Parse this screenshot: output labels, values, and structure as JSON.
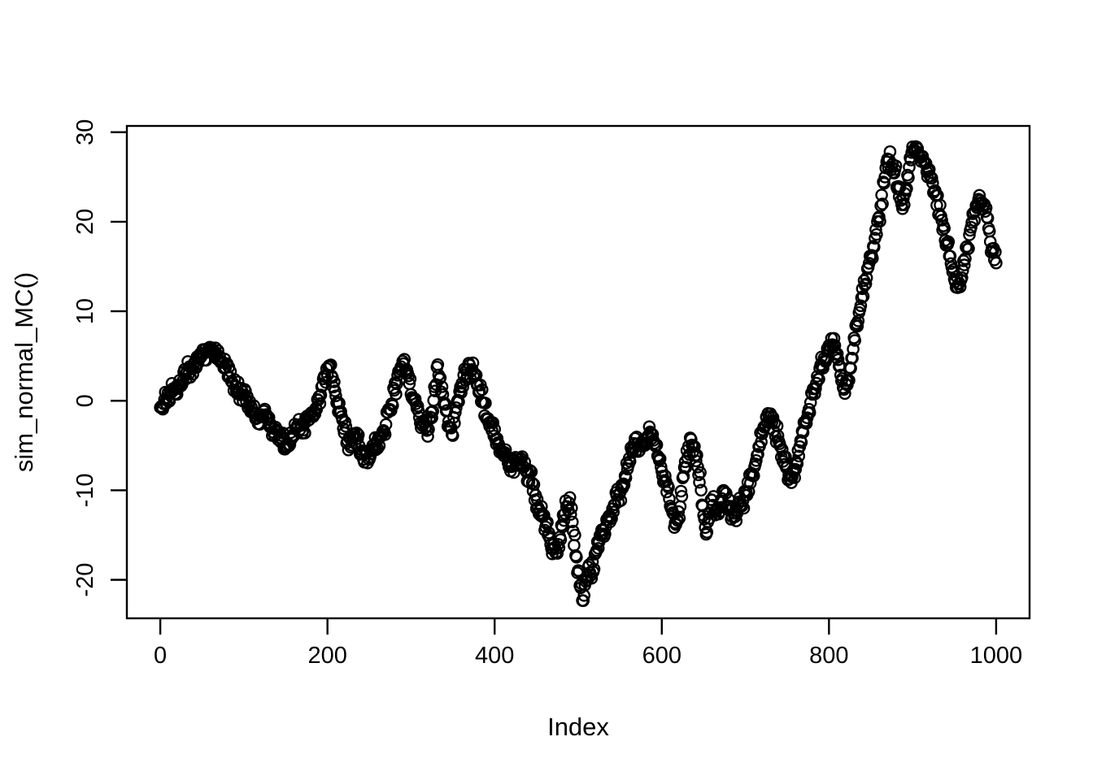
{
  "figure": {
    "background": "#ffffff",
    "foreground": "#000000"
  },
  "chart_data": {
    "type": "scatter",
    "title": "",
    "xlabel": "Index",
    "ylabel": "sim_normal_MC()",
    "x_ticks": [
      0,
      200,
      400,
      600,
      800,
      1000
    ],
    "y_ticks": [
      -20,
      -10,
      0,
      10,
      20,
      30
    ],
    "xlim": [
      -40,
      1040
    ],
    "ylim": [
      -24.3,
      30.7
    ],
    "grid": false,
    "legend": null,
    "marker": "open-circle",
    "marker_color": "#000000",
    "n_points": 1001,
    "x_start": 0,
    "x_step": 1,
    "y_min_approx": -22,
    "y_max_approx": 28.5,
    "waypoints": [
      [
        0,
        -0.5
      ],
      [
        5,
        0.2
      ],
      [
        10,
        0.6
      ],
      [
        15,
        1.4
      ],
      [
        20,
        1.0
      ],
      [
        25,
        2.0
      ],
      [
        30,
        3.0
      ],
      [
        35,
        3.8
      ],
      [
        40,
        3.4
      ],
      [
        45,
        4.4
      ],
      [
        50,
        5.2
      ],
      [
        55,
        5.0
      ],
      [
        60,
        5.8
      ],
      [
        65,
        5.4
      ],
      [
        70,
        5.0
      ],
      [
        75,
        4.4
      ],
      [
        80,
        3.4
      ],
      [
        85,
        2.4
      ],
      [
        90,
        1.4
      ],
      [
        95,
        0.6
      ],
      [
        100,
        1.0
      ],
      [
        105,
        0.0
      ],
      [
        110,
        -1.0
      ],
      [
        115,
        -1.6
      ],
      [
        120,
        -2.0
      ],
      [
        125,
        -1.6
      ],
      [
        130,
        -2.4
      ],
      [
        135,
        -3.0
      ],
      [
        140,
        -3.6
      ],
      [
        145,
        -4.4
      ],
      [
        150,
        -5.4
      ],
      [
        155,
        -4.6
      ],
      [
        160,
        -3.6
      ],
      [
        165,
        -2.6
      ],
      [
        170,
        -3.0
      ],
      [
        175,
        -2.2
      ],
      [
        180,
        -1.6
      ],
      [
        185,
        -1.0
      ],
      [
        190,
        0.2
      ],
      [
        195,
        1.8
      ],
      [
        200,
        3.4
      ],
      [
        203,
        4.2
      ],
      [
        206,
        2.6
      ],
      [
        210,
        0.6
      ],
      [
        215,
        -1.4
      ],
      [
        220,
        -3.0
      ],
      [
        225,
        -4.4
      ],
      [
        230,
        -5.0
      ],
      [
        235,
        -4.2
      ],
      [
        240,
        -5.6
      ],
      [
        245,
        -6.4
      ],
      [
        250,
        -6.0
      ],
      [
        255,
        -5.4
      ],
      [
        260,
        -5.0
      ],
      [
        265,
        -4.0
      ],
      [
        270,
        -2.8
      ],
      [
        275,
        -1.2
      ],
      [
        280,
        1.0
      ],
      [
        285,
        3.0
      ],
      [
        290,
        4.4
      ],
      [
        295,
        3.4
      ],
      [
        300,
        1.4
      ],
      [
        305,
        0.0
      ],
      [
        310,
        -1.6
      ],
      [
        315,
        -2.6
      ],
      [
        320,
        -3.4
      ],
      [
        325,
        -2.2
      ],
      [
        330,
        2.6
      ],
      [
        333,
        3.2
      ],
      [
        336,
        1.8
      ],
      [
        340,
        0.0
      ],
      [
        345,
        -2.2
      ],
      [
        350,
        -3.0
      ],
      [
        355,
        -1.0
      ],
      [
        360,
        1.6
      ],
      [
        365,
        3.0
      ],
      [
        370,
        3.8
      ],
      [
        375,
        3.0
      ],
      [
        380,
        2.0
      ],
      [
        385,
        0.4
      ],
      [
        390,
        -1.2
      ],
      [
        395,
        -2.6
      ],
      [
        400,
        -4.2
      ],
      [
        405,
        -5.2
      ],
      [
        410,
        -5.6
      ],
      [
        415,
        -6.6
      ],
      [
        420,
        -7.4
      ],
      [
        425,
        -7.0
      ],
      [
        430,
        -6.2
      ],
      [
        435,
        -7.4
      ],
      [
        440,
        -8.2
      ],
      [
        445,
        -9.2
      ],
      [
        450,
        -11.0
      ],
      [
        455,
        -12.6
      ],
      [
        460,
        -13.6
      ],
      [
        465,
        -15.4
      ],
      [
        470,
        -16.6
      ],
      [
        475,
        -16.8
      ],
      [
        480,
        -14.2
      ],
      [
        485,
        -12.2
      ],
      [
        490,
        -11.6
      ],
      [
        495,
        -15.0
      ],
      [
        500,
        -19.0
      ],
      [
        503,
        -21.0
      ],
      [
        506,
        -21.8
      ],
      [
        509,
        -20.0
      ],
      [
        512,
        -18.6
      ],
      [
        516,
        -19.0
      ],
      [
        520,
        -17.6
      ],
      [
        525,
        -16.0
      ],
      [
        530,
        -14.6
      ],
      [
        535,
        -13.6
      ],
      [
        540,
        -12.6
      ],
      [
        545,
        -11.2
      ],
      [
        550,
        -10.6
      ],
      [
        555,
        -9.2
      ],
      [
        560,
        -7.2
      ],
      [
        565,
        -5.6
      ],
      [
        570,
        -4.6
      ],
      [
        575,
        -5.6
      ],
      [
        580,
        -4.6
      ],
      [
        585,
        -3.6
      ],
      [
        590,
        -4.6
      ],
      [
        595,
        -5.8
      ],
      [
        600,
        -7.6
      ],
      [
        605,
        -9.2
      ],
      [
        610,
        -11.6
      ],
      [
        615,
        -13.6
      ],
      [
        618,
        -14.0
      ],
      [
        622,
        -12.0
      ],
      [
        626,
        -8.6
      ],
      [
        630,
        -6.2
      ],
      [
        634,
        -4.8
      ],
      [
        638,
        -5.2
      ],
      [
        642,
        -7.0
      ],
      [
        646,
        -9.0
      ],
      [
        650,
        -13.0
      ],
      [
        653,
        -15.0
      ],
      [
        656,
        -13.0
      ],
      [
        660,
        -11.2
      ],
      [
        665,
        -12.4
      ],
      [
        670,
        -11.6
      ],
      [
        675,
        -10.6
      ],
      [
        680,
        -12.0
      ],
      [
        685,
        -13.0
      ],
      [
        690,
        -12.6
      ],
      [
        695,
        -11.6
      ],
      [
        700,
        -10.6
      ],
      [
        705,
        -9.2
      ],
      [
        710,
        -7.6
      ],
      [
        715,
        -6.0
      ],
      [
        720,
        -4.0
      ],
      [
        725,
        -2.2
      ],
      [
        730,
        -1.6
      ],
      [
        735,
        -3.0
      ],
      [
        740,
        -4.6
      ],
      [
        745,
        -6.2
      ],
      [
        750,
        -8.0
      ],
      [
        755,
        -9.4
      ],
      [
        760,
        -7.6
      ],
      [
        765,
        -5.2
      ],
      [
        770,
        -3.2
      ],
      [
        775,
        -1.6
      ],
      [
        780,
        0.6
      ],
      [
        785,
        2.2
      ],
      [
        790,
        3.6
      ],
      [
        795,
        4.6
      ],
      [
        800,
        5.6
      ],
      [
        805,
        6.6
      ],
      [
        810,
        5.0
      ],
      [
        814,
        2.6
      ],
      [
        818,
        1.2
      ],
      [
        822,
        2.2
      ],
      [
        826,
        4.2
      ],
      [
        830,
        6.6
      ],
      [
        835,
        9.2
      ],
      [
        840,
        12.0
      ],
      [
        845,
        14.4
      ],
      [
        850,
        16.0
      ],
      [
        855,
        18.0
      ],
      [
        860,
        20.6
      ],
      [
        865,
        23.6
      ],
      [
        868,
        26.0
      ],
      [
        872,
        27.3
      ],
      [
        876,
        26.4
      ],
      [
        880,
        25.4
      ],
      [
        884,
        23.2
      ],
      [
        888,
        21.6
      ],
      [
        892,
        24.0
      ],
      [
        896,
        26.6
      ],
      [
        900,
        28.0
      ],
      [
        905,
        28.4
      ],
      [
        910,
        27.4
      ],
      [
        915,
        26.4
      ],
      [
        920,
        25.0
      ],
      [
        925,
        23.4
      ],
      [
        930,
        22.0
      ],
      [
        935,
        20.4
      ],
      [
        940,
        18.4
      ],
      [
        945,
        16.0
      ],
      [
        950,
        14.0
      ],
      [
        955,
        13.0
      ],
      [
        958,
        13.6
      ],
      [
        962,
        15.6
      ],
      [
        966,
        17.6
      ],
      [
        970,
        19.6
      ],
      [
        975,
        21.0
      ],
      [
        980,
        22.4
      ],
      [
        985,
        22.0
      ],
      [
        988,
        20.6
      ],
      [
        992,
        18.6
      ],
      [
        996,
        16.6
      ],
      [
        1000,
        16.2
      ]
    ]
  }
}
